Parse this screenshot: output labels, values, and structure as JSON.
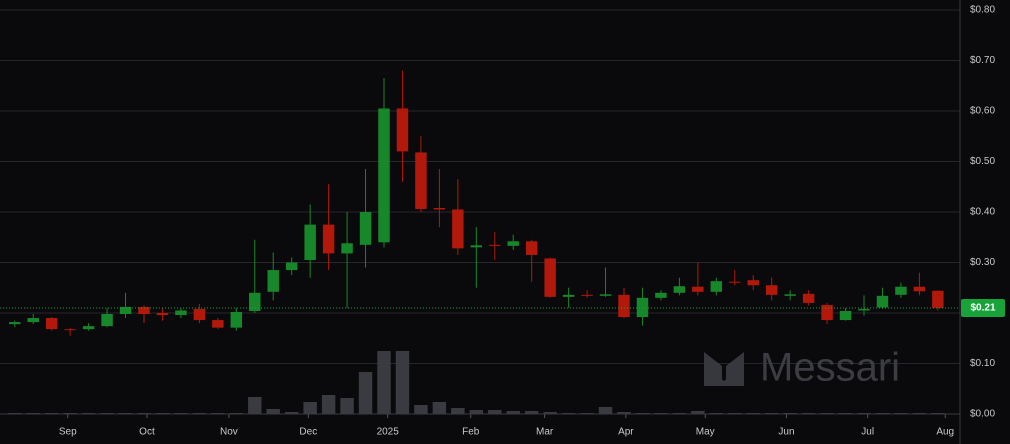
{
  "chart_data": {
    "type": "candlestick",
    "categories": [
      null,
      null,
      null,
      null,
      null,
      null,
      null,
      null,
      null,
      null,
      null,
      null,
      null,
      null,
      null,
      null,
      null,
      null,
      null,
      null,
      null,
      null,
      null,
      null,
      null,
      null,
      null,
      null,
      null,
      null,
      null,
      null,
      null,
      null,
      null,
      null,
      null,
      null,
      null,
      null,
      null,
      null,
      null,
      null,
      null,
      null,
      null,
      null,
      null,
      null,
      null
    ],
    "open": [
      0.178,
      0.182,
      0.19,
      0.168,
      0.168,
      0.174,
      0.198,
      0.212,
      0.2,
      0.196,
      0.208,
      0.186,
      0.171,
      0.204,
      0.242,
      0.285,
      0.305,
      0.375,
      0.318,
      0.335,
      0.34,
      0.605,
      0.518,
      0.408,
      0.405,
      0.33,
      0.335,
      0.333,
      0.342,
      0.308,
      0.232,
      0.236,
      0.234,
      0.236,
      0.192,
      0.23,
      0.24,
      0.252,
      0.242,
      0.262,
      0.265,
      0.255,
      0.234,
      0.238,
      0.216,
      0.186,
      0.205,
      0.211,
      0.236,
      0.252,
      0.244
    ],
    "high": [
      0.185,
      0.198,
      0.192,
      0.17,
      0.18,
      0.21,
      0.24,
      0.215,
      0.21,
      0.21,
      0.218,
      0.19,
      0.21,
      0.345,
      0.32,
      0.31,
      0.415,
      0.455,
      0.4,
      0.485,
      0.665,
      0.68,
      0.55,
      0.485,
      0.465,
      0.37,
      0.36,
      0.355,
      0.345,
      0.31,
      0.25,
      0.245,
      0.29,
      0.25,
      0.25,
      0.245,
      0.27,
      0.3,
      0.27,
      0.285,
      0.275,
      0.27,
      0.245,
      0.245,
      0.22,
      0.21,
      0.235,
      0.25,
      0.26,
      0.28,
      0.245
    ],
    "low": [
      0.172,
      0.178,
      0.165,
      0.155,
      0.165,
      0.172,
      0.19,
      0.18,
      0.185,
      0.19,
      0.18,
      0.168,
      0.165,
      0.2,
      0.225,
      0.275,
      0.27,
      0.285,
      0.21,
      0.29,
      0.33,
      0.46,
      0.4,
      0.37,
      0.315,
      0.25,
      0.305,
      0.325,
      0.262,
      0.23,
      0.21,
      0.23,
      0.232,
      0.19,
      0.175,
      0.225,
      0.235,
      0.235,
      0.235,
      0.255,
      0.245,
      0.225,
      0.225,
      0.215,
      0.178,
      0.185,
      0.195,
      0.208,
      0.23,
      0.235,
      0.205
    ],
    "close": [
      0.182,
      0.19,
      0.168,
      0.166,
      0.174,
      0.198,
      0.212,
      0.198,
      0.196,
      0.205,
      0.186,
      0.171,
      0.202,
      0.24,
      0.285,
      0.3,
      0.375,
      0.318,
      0.338,
      0.4,
      0.605,
      0.52,
      0.406,
      0.405,
      0.328,
      0.334,
      0.333,
      0.342,
      0.315,
      0.232,
      0.236,
      0.234,
      0.237,
      0.192,
      0.23,
      0.24,
      0.253,
      0.242,
      0.263,
      0.26,
      0.255,
      0.236,
      0.237,
      0.22,
      0.186,
      0.204,
      0.208,
      0.234,
      0.252,
      0.243,
      0.21
    ],
    "volume": [
      1,
      1,
      1,
      1,
      1,
      1,
      1,
      1,
      1,
      1,
      1,
      1,
      1,
      17,
      5,
      2,
      12,
      19,
      16,
      42,
      63,
      63,
      9,
      12,
      6,
      4,
      4,
      3,
      3,
      2,
      1,
      1,
      7,
      2,
      1,
      1,
      1,
      3,
      1,
      1,
      1,
      1,
      1,
      1,
      1,
      1,
      1,
      1,
      1,
      1,
      1
    ],
    "up_color": "#17882a",
    "down_color": "#b2190a",
    "volume_color": "#3a3b40",
    "xlim": [
      -0.8,
      51.2
    ],
    "xticks": [
      {
        "value": 2.87,
        "label": "Sep"
      },
      {
        "value": 7.16,
        "label": "Oct"
      },
      {
        "value": 11.6,
        "label": "Nov"
      },
      {
        "value": 15.9,
        "label": "Dec"
      },
      {
        "value": 20.2,
        "label": "2025"
      },
      {
        "value": 24.7,
        "label": "Feb"
      },
      {
        "value": 28.7,
        "label": "Mar"
      },
      {
        "value": 33.1,
        "label": "Apr"
      },
      {
        "value": 37.4,
        "label": "May"
      },
      {
        "value": 41.8,
        "label": "Jun"
      },
      {
        "value": 46.2,
        "label": "Jul"
      },
      {
        "value": 50.4,
        "label": "Aug"
      }
    ],
    "ylim": [
      0,
      0.8
    ],
    "yticks": [
      {
        "value": 0,
        "label": "$0.00"
      },
      {
        "value": 0.1,
        "label": "$0.10"
      },
      {
        "value": 0.2,
        "label": "$0.20"
      },
      {
        "value": 0.3,
        "label": "$0.30"
      },
      {
        "value": 0.4,
        "label": "$0.40"
      },
      {
        "value": 0.5,
        "label": "$0.50"
      },
      {
        "value": 0.6,
        "label": "$0.60"
      },
      {
        "value": 0.7,
        "label": "$0.70"
      },
      {
        "value": 0.8,
        "label": "$0.80"
      }
    ],
    "grid": true,
    "last_price": {
      "value": 0.21,
      "label": "$0.21",
      "color": "#17a33a"
    },
    "watermark": "Messari"
  }
}
